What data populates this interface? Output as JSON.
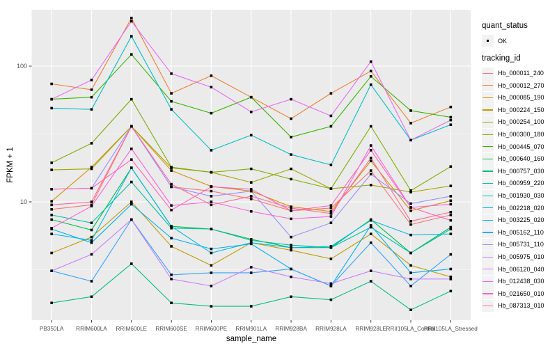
{
  "legend": {
    "quant_status_title": "quant_status",
    "quant_status_value": "OK",
    "tracking_id_title": "tracking_id"
  },
  "chart_data": {
    "type": "line",
    "title": "",
    "xlabel": "sample_name",
    "ylabel": "FPKM + 1",
    "y_scale": "log10",
    "y_ticks": [
      100,
      10
    ],
    "y_tick_labels": [
      "100",
      "10"
    ],
    "y_minor_gridlines": [
      31.62,
      3.162
    ],
    "ylim_approx": [
      1.34,
      260
    ],
    "grid": "on-white-major-minor",
    "legend_position": "right",
    "panel_background": "#EBEBEB",
    "point_color": "#000000",
    "point_shape": "small-black-square",
    "quant_status": "OK",
    "categories": [
      "PB350LA",
      "RRIM600LA",
      "RRIM600LE",
      "RRIM600SE",
      "RRIM600PE",
      "RRIM901LA",
      "RRIM928BA",
      "RRIM928LA",
      "RRIM928LE",
      "RRII105LA_Control",
      "RRII105LA_Stressed"
    ],
    "series": [
      {
        "name": "Hb_000011_240",
        "color": "#F8766D",
        "values": [
          8.8,
          9.5,
          36,
          12.9,
          12,
          10.5,
          8.6,
          9.0,
          17,
          6.8,
          8.0
        ]
      },
      {
        "name": "Hb_000012_270",
        "color": "#EA8331",
        "values": [
          74,
          67,
          226,
          63,
          85,
          59,
          41,
          63,
          92,
          38,
          50
        ]
      },
      {
        "name": "Hb_000085_190",
        "color": "#D89000",
        "values": [
          10.1,
          18,
          36,
          17,
          13,
          12,
          9.2,
          8.5,
          20,
          8.6,
          10.2
        ]
      },
      {
        "name": "Hb_000224_150",
        "color": "#C09B00",
        "values": [
          4.2,
          5.5,
          10,
          4.7,
          3.4,
          5.0,
          4.4,
          3.8,
          5.8,
          3.4,
          2.8
        ]
      },
      {
        "name": "Hb_000254_100",
        "color": "#A3A500",
        "values": [
          17.2,
          17.5,
          36,
          17.8,
          16.5,
          13.9,
          17.5,
          12.5,
          13.3,
          11.8,
          13.1
        ]
      },
      {
        "name": "Hb_000300_180",
        "color": "#7CAE00",
        "values": [
          19.4,
          27,
          57,
          18,
          16.5,
          17.5,
          14.7,
          12.5,
          36,
          12.1,
          18.2
        ]
      },
      {
        "name": "Hb_000445_070",
        "color": "#39B600",
        "values": [
          57,
          59,
          122,
          55,
          45,
          59,
          30,
          36,
          84,
          47,
          42
        ]
      },
      {
        "name": "Hb_000640_160",
        "color": "#00BB4E",
        "values": [
          7.4,
          6.2,
          17.8,
          6.6,
          6.3,
          5.3,
          4.6,
          4.6,
          7.4,
          4.2,
          6.5
        ]
      },
      {
        "name": "Hb_000757_030",
        "color": "#00BF7D",
        "values": [
          1.8,
          2.0,
          3.5,
          1.8,
          1.7,
          1.7,
          2.0,
          1.9,
          2.6,
          1.6,
          2.2
        ]
      },
      {
        "name": "Hb_000959_220",
        "color": "#00C1A3",
        "values": [
          8.0,
          7.0,
          14,
          6.4,
          6.3,
          5.2,
          4.8,
          4.6,
          6.5,
          4.2,
          6.3
        ]
      },
      {
        "name": "Hb_001930_030",
        "color": "#00BFC4",
        "values": [
          49,
          48,
          166,
          48,
          24,
          31,
          22.3,
          18.7,
          73,
          28.5,
          37
        ]
      },
      {
        "name": "Hb_002218_020",
        "color": "#00BAE0",
        "values": [
          5.8,
          5.2,
          17.8,
          6.6,
          4.2,
          5.0,
          4.6,
          4.7,
          7.3,
          5.7,
          5.8
        ]
      },
      {
        "name": "Hb_003225_020",
        "color": "#00B0F6",
        "values": [
          6.3,
          5.0,
          9.6,
          5.4,
          4.5,
          4.9,
          3.2,
          2.4,
          6.7,
          3.0,
          3.2
        ]
      },
      {
        "name": "Hb_005162_110",
        "color": "#35A2FF",
        "values": [
          3.1,
          2.6,
          7.4,
          2.9,
          3.0,
          3.0,
          3.2,
          2.4,
          5.0,
          2.4,
          4.1
        ]
      },
      {
        "name": "Hb_005731_110",
        "color": "#9590FF",
        "values": [
          12.4,
          12.6,
          36,
          12.9,
          11,
          12,
          5.5,
          7.0,
          16,
          9.7,
          11
        ]
      },
      {
        "name": "Hb_005975_010",
        "color": "#C77CFF",
        "values": [
          3.1,
          4.1,
          7.4,
          2.7,
          2.4,
          3.3,
          2.8,
          2.5,
          3.1,
          2.7,
          2.7
        ]
      },
      {
        "name": "Hb_006120_040",
        "color": "#E76BF3",
        "values": [
          57,
          79,
          214,
          88,
          70,
          46,
          57,
          43,
          108,
          28.5,
          40
        ]
      },
      {
        "name": "Hb_012438_030",
        "color": "#FA62DB",
        "values": [
          6.4,
          9.3,
          24.6,
          9.4,
          10,
          8.5,
          7.5,
          7.8,
          26,
          9.1,
          9.6
        ]
      },
      {
        "name": "Hb_021650_010",
        "color": "#FF62BC",
        "values": [
          12.4,
          12.6,
          20.5,
          8.7,
          12.9,
          12.4,
          8.6,
          9.4,
          24,
          9.1,
          7.3
        ]
      },
      {
        "name": "Hb_087313_010",
        "color": "#FF6A98",
        "values": [
          9.5,
          10,
          36,
          13.5,
          9.5,
          11,
          9.0,
          8.2,
          21,
          7.2,
          8.4
        ]
      }
    ]
  }
}
